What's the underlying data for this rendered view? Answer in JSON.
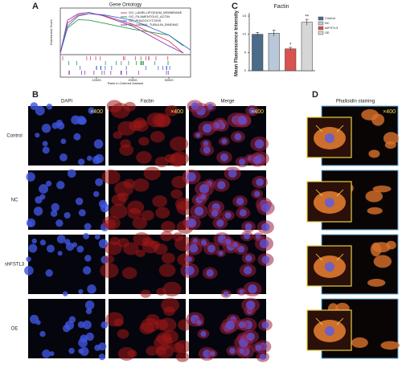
{
  "panel_labels": [
    "A",
    "B",
    "C",
    "D"
  ],
  "gsea": {
    "type": "line",
    "title": "Gene Ontology",
    "y_label": "Enrichment Score",
    "x_label": "Rank in Ordered Dataset",
    "xlim": [
      0,
      36000
    ],
    "xticks": [
      10000,
      20000,
      30000
    ],
    "ylim": [
      0,
      0.7
    ],
    "series": [
      {
        "name": "GO_LAMELLIPODIUM_MEMBRANE",
        "color": "#e0406a",
        "x": [
          0,
          2000,
          5000,
          8000,
          12000,
          20000,
          30000,
          34000
        ],
        "values": [
          0,
          0.5,
          0.64,
          0.66,
          0.63,
          0.48,
          0.2,
          0
        ]
      },
      {
        "name": "GO_FILAMENTOUS_ACTIN",
        "color": "#2a9d4a",
        "x": [
          0,
          2000,
          5000,
          8000,
          12000,
          20000,
          30000,
          34000
        ],
        "values": [
          0,
          0.42,
          0.56,
          0.55,
          0.5,
          0.4,
          0.3,
          0.12
        ]
      },
      {
        "name": "GO_PHAGOCYTOSIS",
        "color": "#3a6fd0",
        "x": [
          0,
          2000,
          5000,
          8000,
          12000,
          20000,
          30000,
          36000
        ],
        "values": [
          0,
          0.45,
          0.62,
          0.66,
          0.64,
          0.55,
          0.3,
          0.05
        ]
      },
      {
        "name": "GO_GAMMA_TUBULIN_BINDING",
        "color": "#8a3fb0",
        "x": [
          0,
          2000,
          5000,
          8000,
          12000,
          20000,
          30000,
          34000
        ],
        "values": [
          0,
          0.55,
          0.66,
          0.68,
          0.62,
          0.45,
          0.12,
          0
        ]
      }
    ]
  },
  "bar_chart": {
    "type": "bar",
    "title": "Factin",
    "y_label": "Mean Fluorescence Intensity",
    "categories": [
      "Control",
      "NC",
      "shFSTL3",
      "OE"
    ],
    "values": [
      10,
      10.3,
      6,
      13.3
    ],
    "errors": [
      0.5,
      0.8,
      0.4,
      0.8
    ],
    "significance": [
      null,
      null,
      "*",
      "**"
    ],
    "colors": [
      "#4a6b8a",
      "#b8c8d8",
      "#d9534f",
      "#d6d6d6"
    ],
    "ylim": [
      0,
      15
    ],
    "yticks": [
      0,
      5,
      10,
      15
    ]
  },
  "microscopy": {
    "columns": [
      "DAPI",
      "Factin",
      "Merge"
    ],
    "rows": [
      "Control",
      "NC",
      "shFSTL3",
      "OE"
    ],
    "magnification": "×400"
  },
  "phalloidin": {
    "title": "Phalloidin staining",
    "magnification": "×400"
  }
}
